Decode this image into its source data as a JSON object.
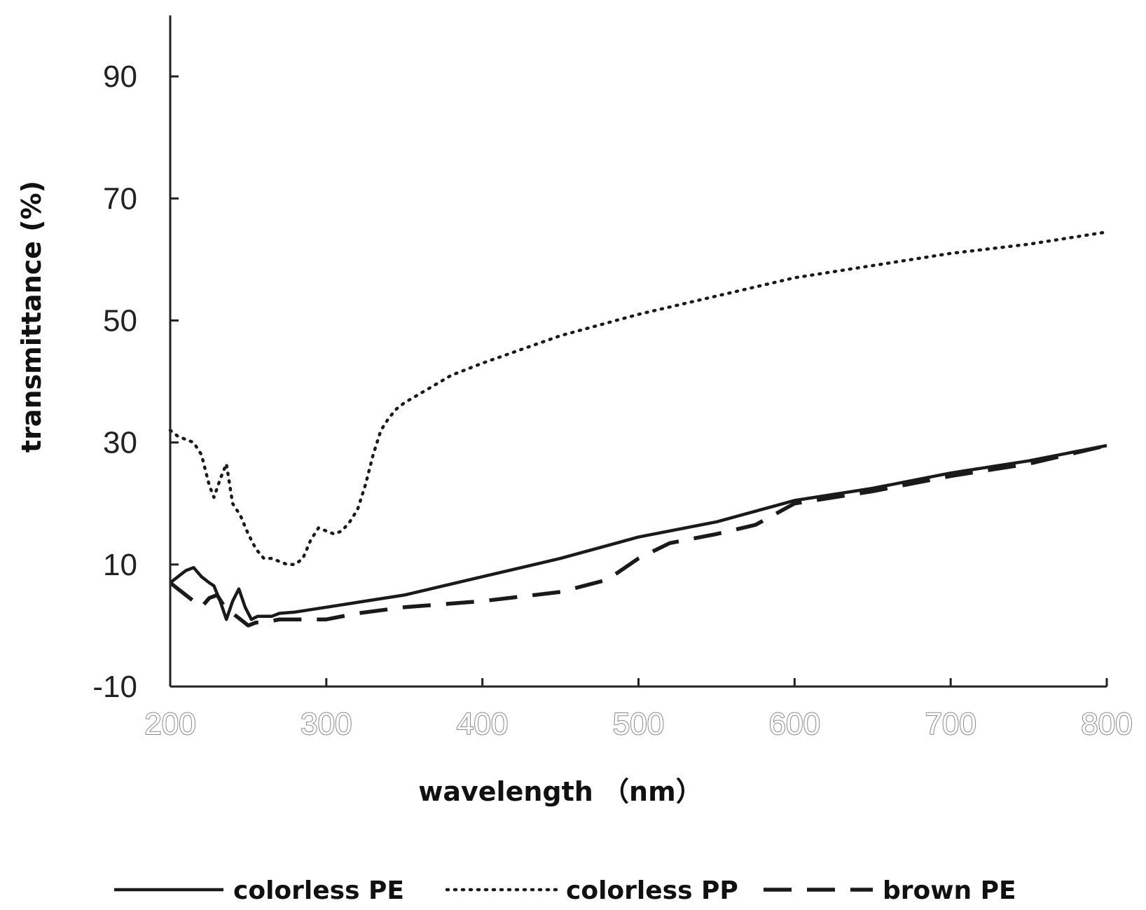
{
  "chart_data": {
    "type": "line",
    "xlabel": "wavelength （nm）",
    "ylabel": "transmittance (%)",
    "xlim": [
      200,
      800
    ],
    "ylim": [
      -10,
      100
    ],
    "x_ticks": [
      200,
      300,
      400,
      500,
      600,
      700,
      800
    ],
    "y_ticks": [
      -10,
      10,
      30,
      50,
      70,
      90
    ],
    "grid": false,
    "legend_position": "bottom",
    "series": [
      {
        "name": "colorless PE",
        "style": "solid",
        "x": [
          200,
          205,
          210,
          215,
          220,
          225,
          228,
          232,
          236,
          240,
          244,
          248,
          252,
          256,
          260,
          265,
          270,
          280,
          300,
          350,
          400,
          450,
          500,
          550,
          600,
          650,
          700,
          750,
          800
        ],
        "y": [
          7,
          8,
          9,
          9.5,
          8,
          7,
          6.5,
          4,
          1,
          4,
          6,
          3,
          1,
          1.5,
          1.5,
          1.5,
          2,
          2.2,
          3,
          5,
          8,
          11,
          14.5,
          17,
          20.5,
          22.5,
          25,
          27,
          29.5
        ]
      },
      {
        "name": "colorless PP",
        "style": "dotted",
        "x": [
          200,
          205,
          210,
          215,
          220,
          225,
          228,
          232,
          236,
          240,
          245,
          250,
          255,
          260,
          265,
          270,
          275,
          280,
          285,
          290,
          295,
          300,
          305,
          310,
          315,
          320,
          325,
          330,
          335,
          340,
          345,
          350,
          360,
          380,
          400,
          450,
          500,
          550,
          600,
          650,
          700,
          750,
          800
        ],
        "y": [
          32,
          31,
          30.5,
          30,
          28,
          23,
          21,
          24,
          26.5,
          20,
          18,
          15,
          12.5,
          11,
          11,
          10.5,
          10,
          10,
          11,
          14,
          16,
          15.5,
          15,
          15.5,
          17,
          19,
          23,
          28,
          32,
          34,
          35.5,
          36.5,
          38,
          41,
          43,
          47.5,
          51,
          54,
          57,
          59,
          61,
          62.5,
          64.5
        ]
      },
      {
        "name": "brown PE",
        "style": "dashed",
        "x": [
          200,
          205,
          210,
          215,
          220,
          225,
          230,
          235,
          240,
          245,
          250,
          255,
          260,
          270,
          280,
          300,
          320,
          350,
          400,
          450,
          480,
          500,
          520,
          550,
          575,
          600,
          650,
          700,
          750,
          800
        ],
        "y": [
          7,
          6,
          5,
          4,
          3,
          4.5,
          5,
          3,
          2,
          1,
          0,
          0.5,
          0.5,
          1,
          1,
          1,
          2,
          3,
          4,
          5.5,
          7.5,
          11,
          13.5,
          15,
          16.5,
          20,
          22,
          24.5,
          26.5,
          29.5
        ]
      }
    ]
  }
}
